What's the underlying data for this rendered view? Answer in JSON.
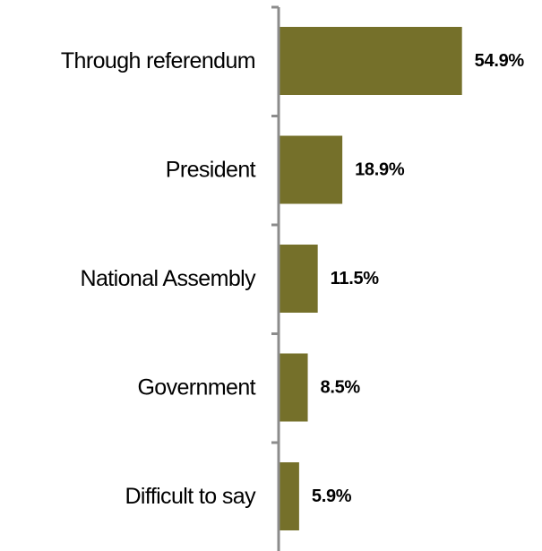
{
  "chart_data": {
    "type": "bar",
    "orientation": "horizontal",
    "categories": [
      "Through referendum",
      "President",
      "National Assembly",
      "Government",
      "Difficult to say"
    ],
    "values": [
      54.9,
      18.9,
      11.5,
      8.5,
      5.9
    ],
    "value_labels": [
      "54.9%",
      "18.9%",
      "11.5%",
      "8.5%",
      "5.9%"
    ],
    "unit": "%",
    "title": "",
    "xlabel": "",
    "ylabel": "",
    "xlim": [
      0,
      100
    ],
    "grid": false,
    "legend": "none",
    "bar_color": "#75702A",
    "axis_color": "#8C8C8C"
  }
}
